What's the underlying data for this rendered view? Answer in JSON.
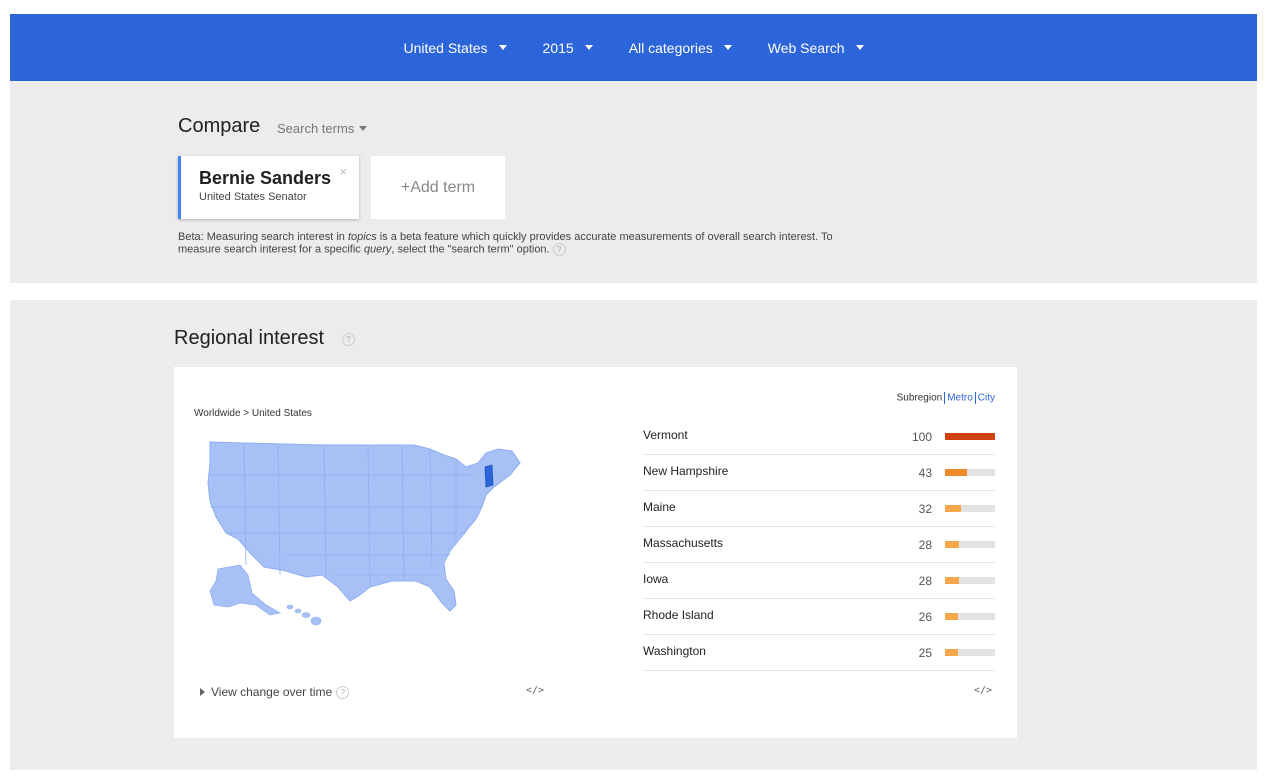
{
  "filters": [
    {
      "label": "United States"
    },
    {
      "label": "2015"
    },
    {
      "label": "All categories"
    },
    {
      "label": "Web Search"
    }
  ],
  "compare": {
    "title": "Compare",
    "mode": "Search terms",
    "term": {
      "name": "Bernie Sanders",
      "subtitle": "United States Senator",
      "remove": "×"
    },
    "add_term": "+Add term",
    "beta_prefix": "Beta: Measuring search interest in ",
    "beta_topics": "topics",
    "beta_mid": " is a beta feature which quickly provides accurate measurements of overall search interest. To measure search interest for a specific ",
    "beta_query": "query",
    "beta_suffix": ", select the \"search term\" option.",
    "help": "?"
  },
  "regional": {
    "title": "Regional interest",
    "help": "?",
    "breadcrumb": "Worldwide > United States",
    "tabs": {
      "subregion": "Subregion",
      "metro": "Metro",
      "city": "City"
    },
    "view_change": "View change over time",
    "embed": "</>",
    "rows": [
      {
        "name": "Vermont",
        "value": 100,
        "color": "#cf4313"
      },
      {
        "name": "New Hampshire",
        "value": 43,
        "color": "#ef8a2b"
      },
      {
        "name": "Maine",
        "value": 32,
        "color": "#f5a84a"
      },
      {
        "name": "Massachusetts",
        "value": 28,
        "color": "#f5a84a"
      },
      {
        "name": "Iowa",
        "value": 28,
        "color": "#f5a84a"
      },
      {
        "name": "Rhode Island",
        "value": 26,
        "color": "#f5a84a"
      },
      {
        "name": "Washington",
        "value": 25,
        "color": "#f5a84a"
      }
    ]
  },
  "colors": {
    "topbar": "#2c64d9",
    "map_fill": "#a7c1f6",
    "map_highlight": "#2c64d9"
  }
}
